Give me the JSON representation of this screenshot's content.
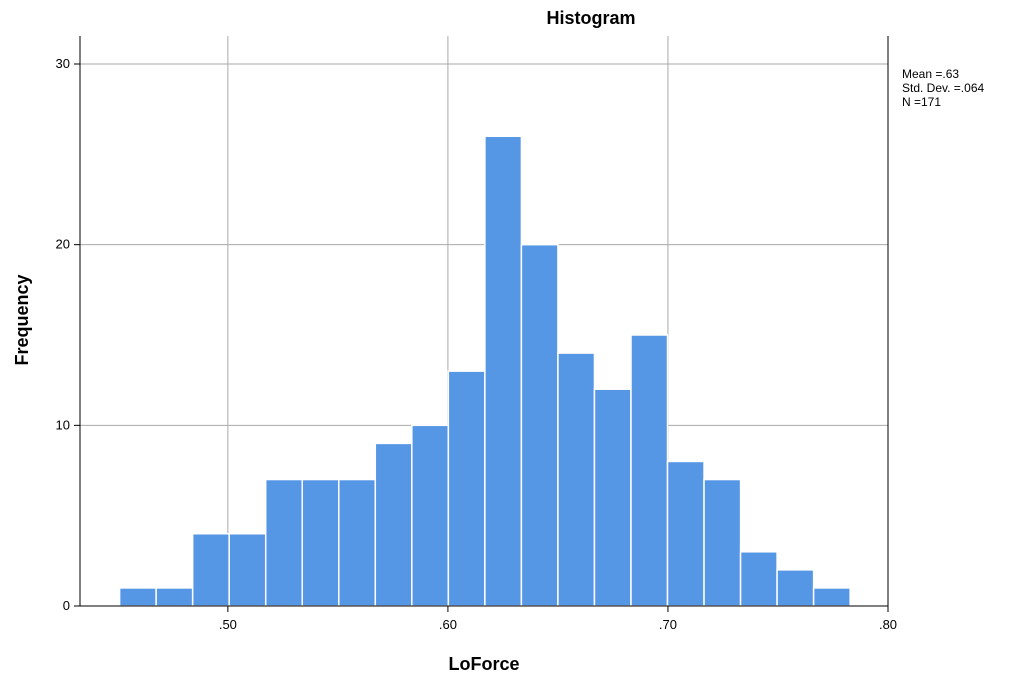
{
  "chart_data": {
    "type": "bar",
    "title": "Histogram",
    "xlabel": "LoForce",
    "ylabel": "Frequency",
    "xlim": [
      0.4328,
      0.8
    ],
    "ylim": [
      0,
      30
    ],
    "x_ticks": [
      0.5,
      0.6,
      0.7,
      0.8
    ],
    "x_tick_labels": [
      ".50",
      ".60",
      ".70",
      ".80"
    ],
    "y_ticks": [
      0,
      10,
      20,
      30
    ],
    "y_tick_labels": [
      "0",
      "10",
      "20",
      "30"
    ],
    "bin_width": 0.0166,
    "bin_starts": [
      0.4508,
      0.4674,
      0.484,
      0.5006,
      0.5172,
      0.5338,
      0.5504,
      0.567,
      0.5836,
      0.6002,
      0.6168,
      0.6334,
      0.65,
      0.6666,
      0.6832,
      0.6998,
      0.7164,
      0.733,
      0.7496,
      0.7662
    ],
    "values": [
      1,
      1,
      4,
      4,
      7,
      7,
      7,
      9,
      10,
      13,
      26,
      20,
      14,
      12,
      15,
      8,
      7,
      3,
      2,
      1
    ],
    "bar_color": "#5596e5",
    "grid": true,
    "stats": [
      "Mean =.63",
      "Std. Dev. =.064",
      "N =171"
    ],
    "stats_position": "top-right"
  }
}
